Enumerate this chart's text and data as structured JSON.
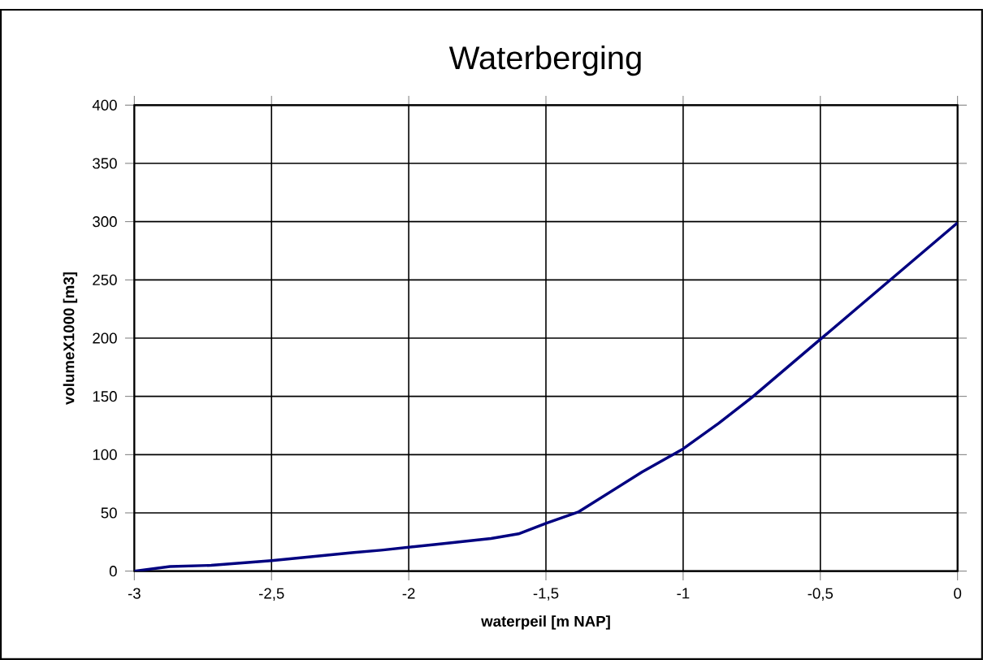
{
  "chart_data": {
    "type": "line",
    "title": "Waterberging",
    "xlabel": "waterpeil [m NAP]",
    "ylabel": "volumeX1000 [m3]",
    "x": [
      -3,
      -2.87,
      -2.72,
      -2.5,
      -2.2,
      -2.1,
      -1.9,
      -1.7,
      -1.6,
      -1.5,
      -1.38,
      -1.15,
      -1.0,
      -0.87,
      -0.75,
      -0.5,
      -0.25,
      0
    ],
    "series": [
      {
        "color": "#000080",
        "values": [
          0,
          4,
          5,
          9,
          16,
          18,
          23,
          28,
          32,
          41,
          51,
          85,
          105,
          127,
          149,
          199,
          249,
          299
        ]
      }
    ],
    "xlim": [
      -3,
      0
    ],
    "ylim": [
      0,
      400
    ],
    "xticks": [
      {
        "value": -3,
        "label": "-3"
      },
      {
        "value": -2.5,
        "label": "-2,5"
      },
      {
        "value": -2,
        "label": "-2"
      },
      {
        "value": -1.5,
        "label": "-1,5"
      },
      {
        "value": -1,
        "label": "-1"
      },
      {
        "value": -0.5,
        "label": "-0,5"
      },
      {
        "value": 0,
        "label": "0"
      }
    ],
    "yticks": [
      0,
      50,
      100,
      150,
      200,
      250,
      300,
      350,
      400
    ],
    "grid": true,
    "marker": "none",
    "line_style": "solid"
  }
}
